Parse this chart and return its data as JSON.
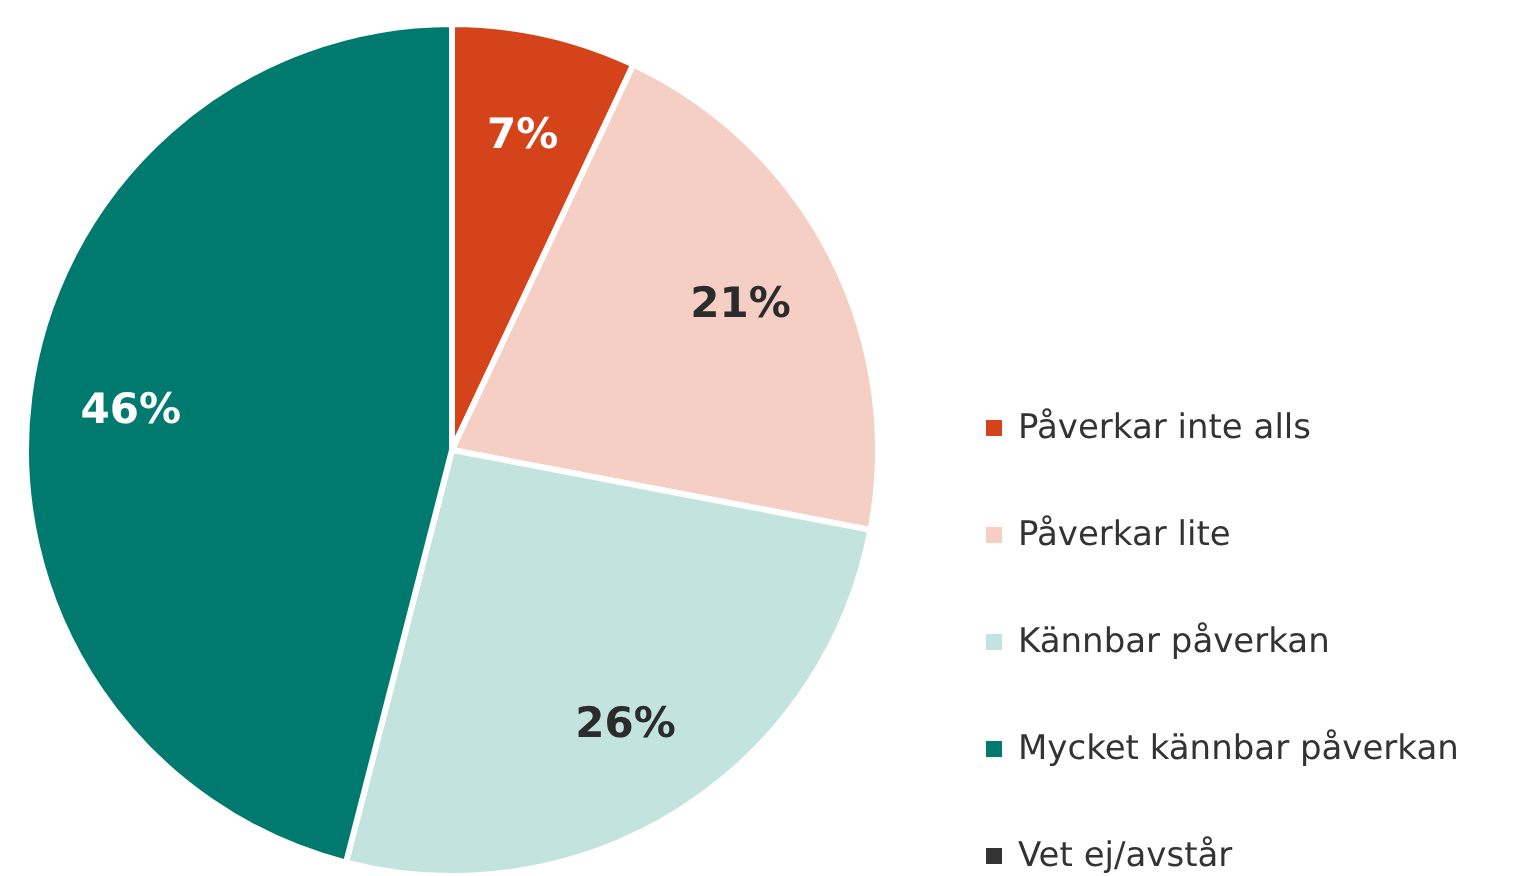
{
  "chart_data": {
    "type": "pie",
    "categories": [
      "Påverkar inte alls",
      "Påverkar lite",
      "Kännbar påverkan",
      "Mycket kännbar påverkan",
      "Vet ej/avstår"
    ],
    "values": [
      7,
      21,
      26,
      46,
      0
    ],
    "colors": [
      "#d4431a",
      "#f5cfc4",
      "#c2e3de",
      "#007a6e",
      "#333333"
    ],
    "value_labels": [
      "7%",
      "21%",
      "26%",
      "46%",
      null
    ],
    "legend": "right"
  }
}
